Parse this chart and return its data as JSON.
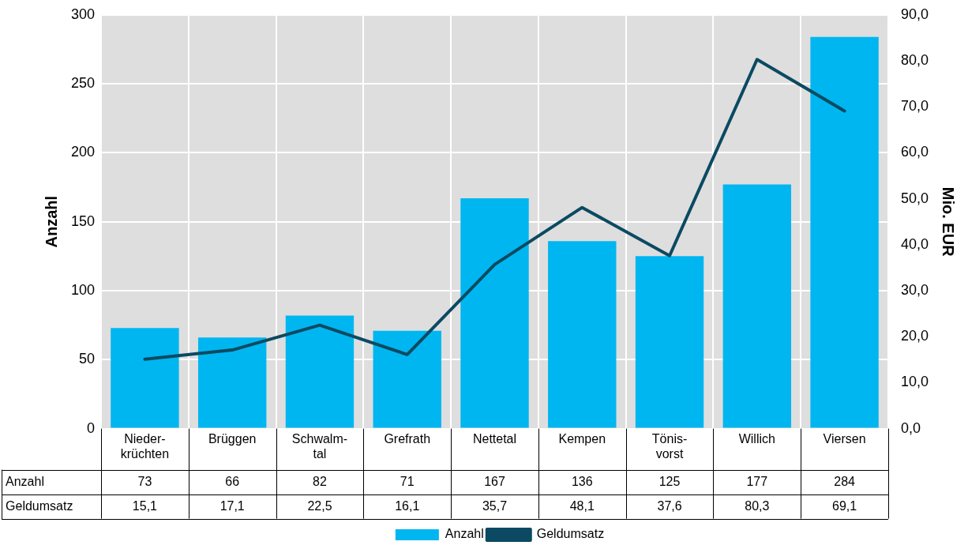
{
  "chart_data": {
    "type": "bar",
    "categories": [
      "Nieder-\nkrüchten",
      "Brüggen",
      "Schwalm-\ntal",
      "Grefrath",
      "Nettetal",
      "Kempen",
      "Tönis-\nvorst",
      "Willich",
      "Viersen"
    ],
    "series": [
      {
        "name": "Anzahl",
        "color": "#00b6f0",
        "values": [
          73,
          66,
          82,
          71,
          167,
          136,
          125,
          177,
          284
        ],
        "value_labels": [
          "73",
          "66",
          "82",
          "71",
          "167",
          "136",
          "125",
          "177",
          "284"
        ]
      },
      {
        "name": "Geldumsatz",
        "type": "line",
        "axis": "y2",
        "color": "#0b4a62",
        "values": [
          15.1,
          17.1,
          22.5,
          16.1,
          35.7,
          48.1,
          37.6,
          80.3,
          69.1
        ],
        "value_labels": [
          "15,1",
          "17,1",
          "22,5",
          "16,1",
          "35,7",
          "48,1",
          "37,6",
          "80,3",
          "69,1"
        ]
      }
    ],
    "ylabel": "Anzahl",
    "y2label": "Mio. EUR",
    "ylim": [
      0,
      300
    ],
    "yticks": [
      0,
      50,
      100,
      150,
      200,
      250,
      300
    ],
    "y2lim": [
      0,
      90
    ],
    "y2ticks": [
      {
        "value": 0,
        "label": "0,0"
      },
      {
        "value": 10,
        "label": "10,0"
      },
      {
        "value": 20,
        "label": "20,0"
      },
      {
        "value": 30,
        "label": "30,0"
      },
      {
        "value": 40,
        "label": "40,0"
      },
      {
        "value": 50,
        "label": "50,0"
      },
      {
        "value": 60,
        "label": "60,0"
      },
      {
        "value": 70,
        "label": "70,0"
      },
      {
        "value": 80,
        "label": "80,0"
      },
      {
        "value": 90,
        "label": "90,0"
      }
    ],
    "grid": true,
    "legend": "bottom",
    "marker": "none",
    "line_style": "solid"
  }
}
